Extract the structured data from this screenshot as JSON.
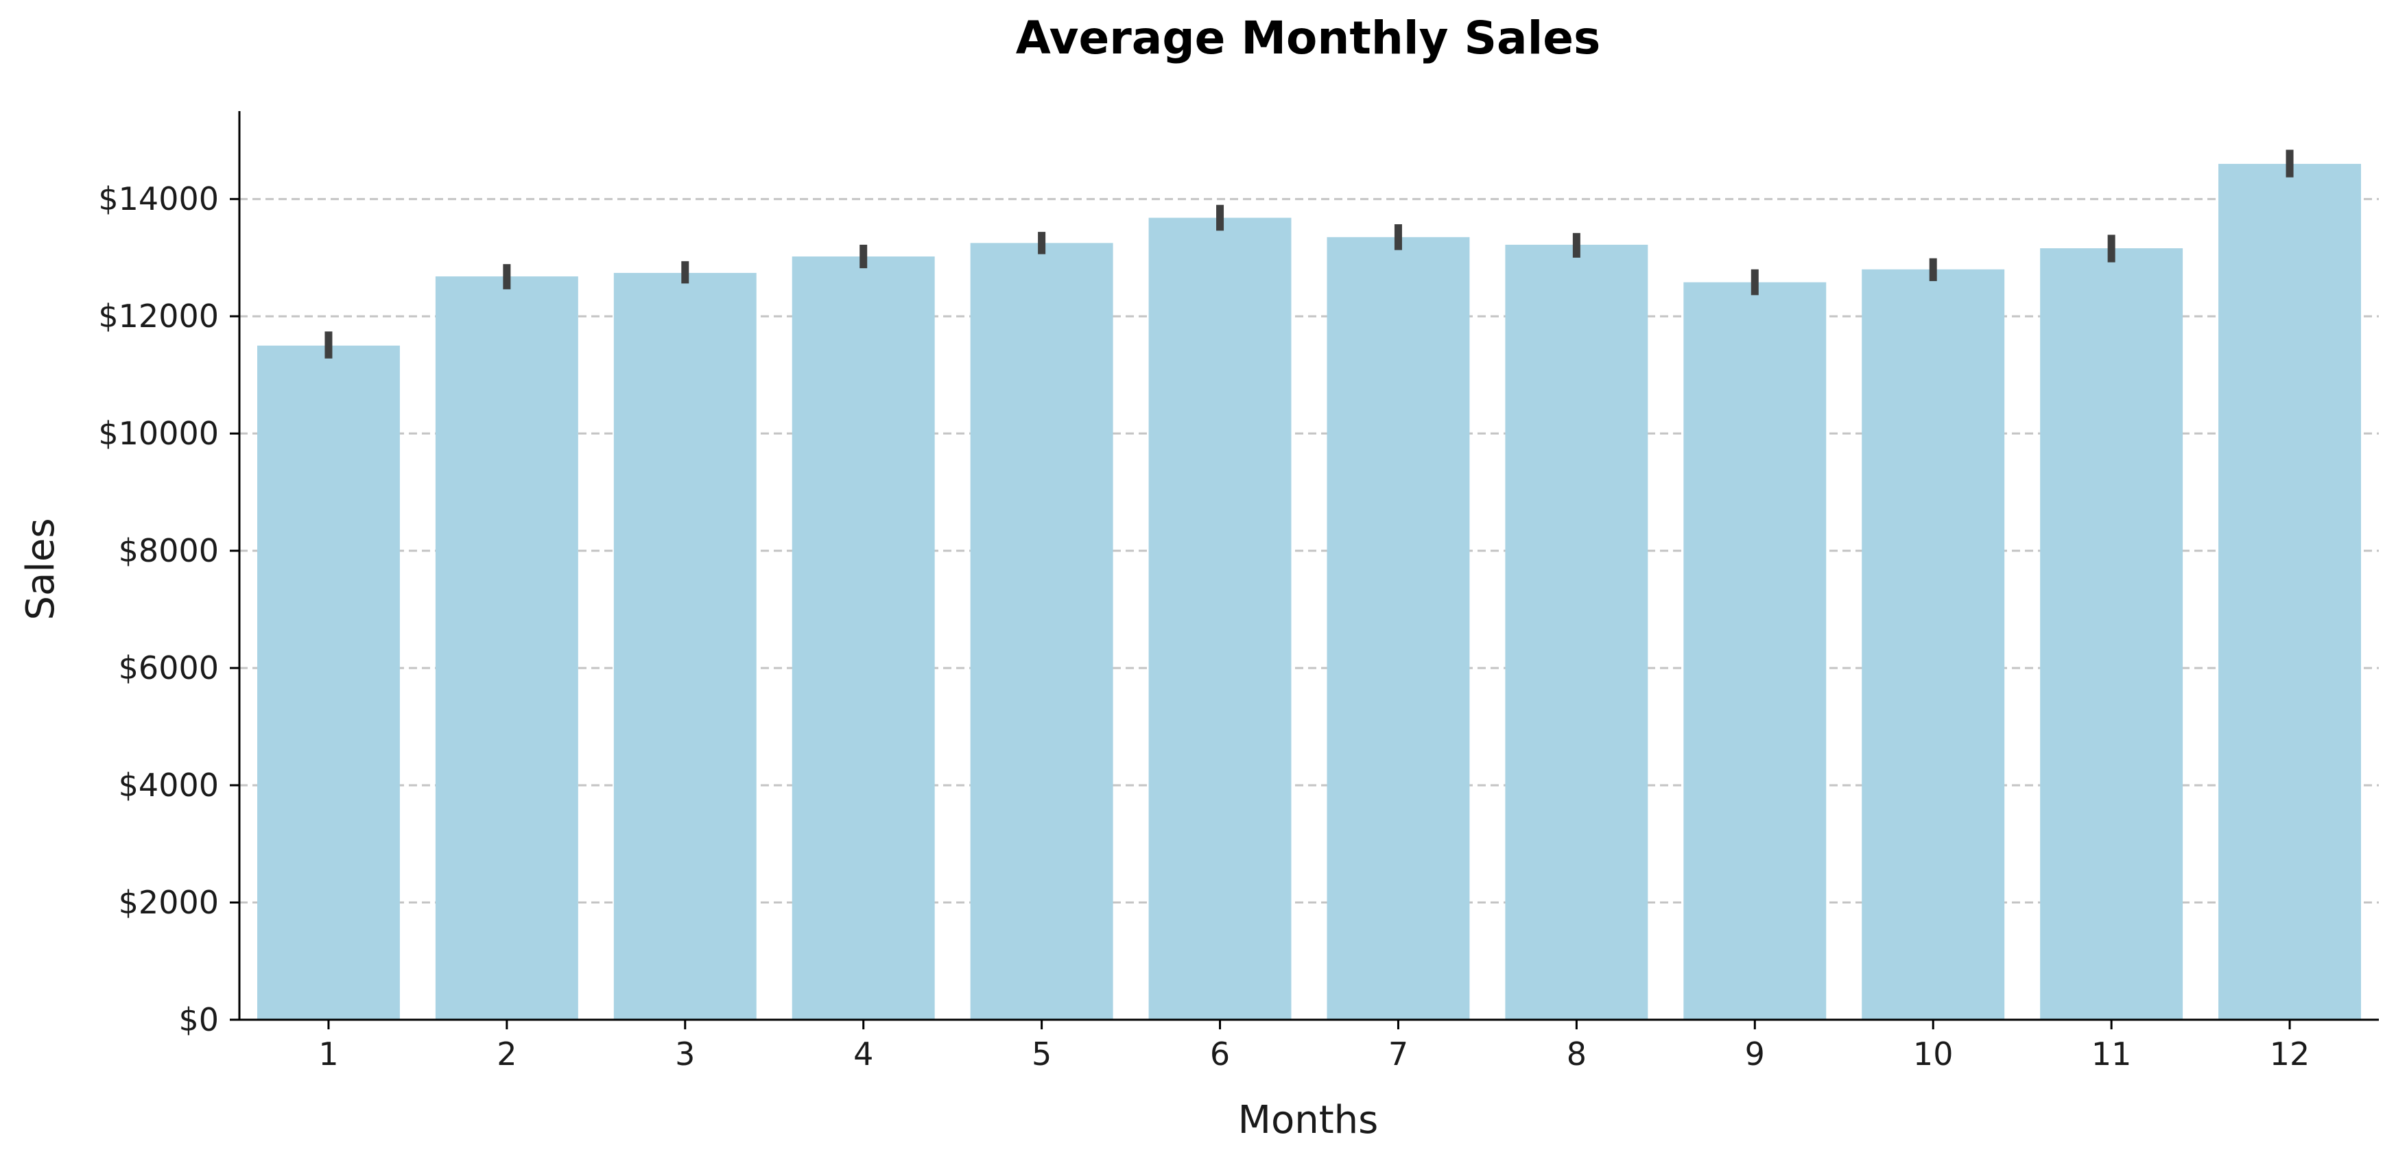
{
  "chart_data": {
    "type": "bar",
    "title": "Average Monthly Sales",
    "xlabel": "Months",
    "ylabel": "Sales",
    "categories": [
      "1",
      "2",
      "3",
      "4",
      "5",
      "6",
      "7",
      "8",
      "9",
      "10",
      "11",
      "12"
    ],
    "values": [
      11500,
      12680,
      12740,
      13020,
      13250,
      13680,
      13350,
      13220,
      12580,
      12800,
      13160,
      14600
    ],
    "error_low": [
      11280,
      12460,
      12560,
      12820,
      13060,
      13460,
      13130,
      13000,
      12360,
      12600,
      12920,
      14370
    ],
    "error_high": [
      11740,
      12890,
      12940,
      13220,
      13440,
      13900,
      13570,
      13420,
      12800,
      12990,
      13390,
      14840
    ],
    "ylim": [
      0,
      15500
    ],
    "yticks": [
      0,
      2000,
      4000,
      6000,
      8000,
      10000,
      12000,
      14000
    ],
    "ytick_labels": [
      "$0",
      "$2000",
      "$4000",
      "$6000",
      "$8000",
      "$10000",
      "$12000",
      "$14000"
    ],
    "grid": {
      "y": true,
      "x": false,
      "style": "dashed"
    },
    "colors": {
      "bar": "#a9d3e4",
      "error_bar": "#3f3f3f",
      "grid": "#c4c4c4",
      "axis": "#000000"
    }
  }
}
